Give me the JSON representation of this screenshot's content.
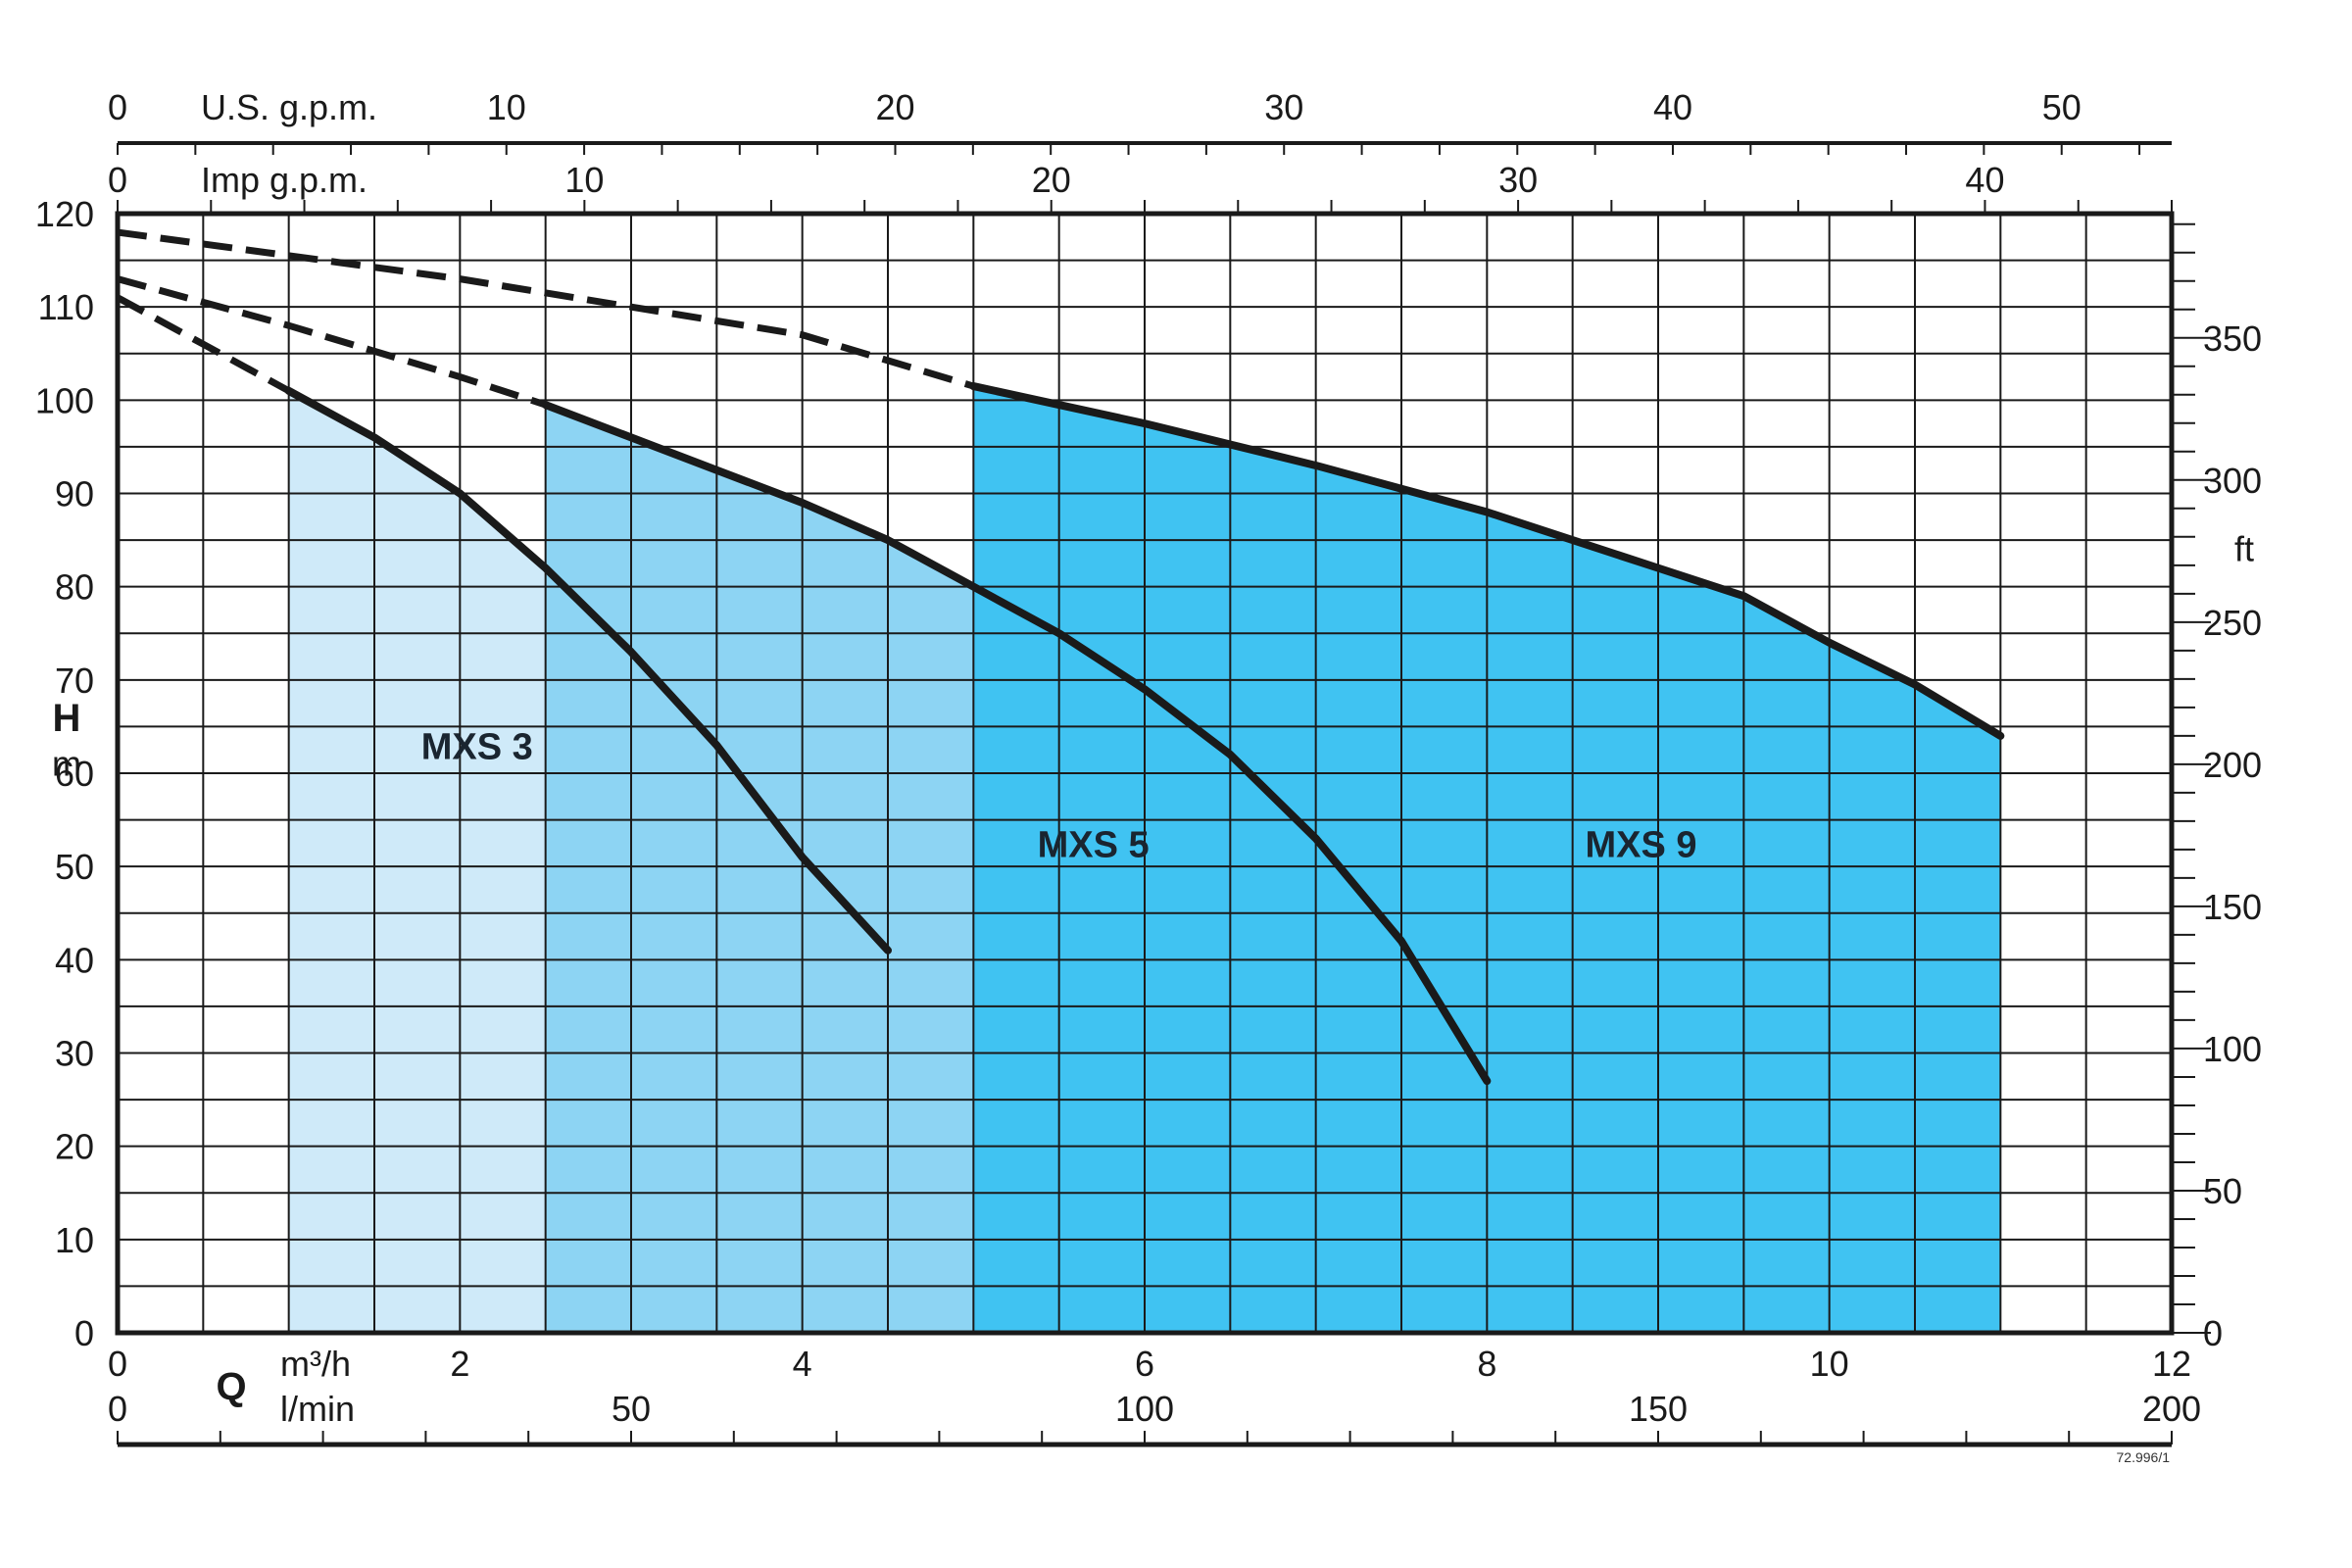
{
  "chart_data": {
    "type": "area",
    "colors": {
      "grid": "#1a1a1a",
      "curve": "#1a1a1a",
      "axis": "#1a1a1a"
    },
    "grid": true,
    "main_axes": {
      "x": {
        "unit": "m³/h",
        "symbol": "Q",
        "range": [
          0,
          12
        ],
        "ticks": [
          0,
          2,
          4,
          6,
          8,
          10,
          12
        ],
        "minor_step": 0.5
      },
      "y": {
        "unit": "m",
        "symbol": "H",
        "range": [
          0,
          120
        ],
        "ticks": [
          0,
          10,
          20,
          30,
          40,
          50,
          60,
          70,
          80,
          90,
          100,
          110,
          120
        ],
        "minor_step": 5
      }
    },
    "secondary_axes": {
      "bottom_lmin": {
        "unit": "l/min",
        "range": [
          0,
          200
        ],
        "ticks": [
          0,
          50,
          100,
          150,
          200
        ],
        "minor_step": 10
      },
      "top_usgpm": {
        "unit": "U.S. g.p.m.",
        "range": [
          0,
          52.83
        ],
        "ticks": [
          0,
          10,
          20,
          30,
          40,
          50
        ],
        "minor_step": 2
      },
      "top_impgpm": {
        "unit": "Imp g.p.m.",
        "range": [
          0,
          44
        ],
        "ticks": [
          0,
          10,
          20,
          30,
          40
        ],
        "minor_step": 2
      },
      "right_ft": {
        "unit": "ft",
        "range": [
          0,
          393.7
        ],
        "ticks": [
          0,
          50,
          100,
          150,
          200,
          250,
          300,
          350
        ],
        "minor_step": 10
      }
    },
    "series": [
      {
        "name": "MXS 3",
        "fill": "#cfeaf9",
        "q_min": 1.0,
        "q_max": 4.5,
        "points": [
          [
            1.0,
            101
          ],
          [
            1.5,
            96
          ],
          [
            2.0,
            90
          ],
          [
            2.5,
            82
          ],
          [
            3.0,
            73
          ],
          [
            3.5,
            63
          ],
          [
            4.0,
            51
          ],
          [
            4.5,
            41
          ]
        ],
        "dashed": [
          [
            0,
            111
          ],
          [
            0.5,
            106
          ],
          [
            1.0,
            101
          ]
        ]
      },
      {
        "name": "MXS 5",
        "fill": "#8dd4f3",
        "q_min": 2.5,
        "q_max": 8.0,
        "points": [
          [
            2.5,
            99.5
          ],
          [
            3.0,
            96
          ],
          [
            3.5,
            92.5
          ],
          [
            4.0,
            89
          ],
          [
            4.5,
            85
          ],
          [
            5.0,
            80
          ],
          [
            5.5,
            75
          ],
          [
            6.0,
            69
          ],
          [
            6.5,
            62
          ],
          [
            7.0,
            53
          ],
          [
            7.5,
            42
          ],
          [
            8.0,
            27
          ]
        ],
        "dashed": [
          [
            0,
            113
          ],
          [
            1.0,
            108
          ],
          [
            2.0,
            102.5
          ],
          [
            2.5,
            99.5
          ]
        ]
      },
      {
        "name": "MXS 9",
        "fill": "#40c3f2",
        "q_min": 5.0,
        "q_max": 11.0,
        "points": [
          [
            5.0,
            101.5
          ],
          [
            6.0,
            97.5
          ],
          [
            7.0,
            93
          ],
          [
            8.0,
            88
          ],
          [
            9.0,
            82
          ],
          [
            9.5,
            79
          ],
          [
            10.0,
            74
          ],
          [
            10.5,
            69.5
          ],
          [
            11.0,
            64
          ]
        ],
        "dashed": [
          [
            0,
            118
          ],
          [
            2.0,
            113
          ],
          [
            4.0,
            107
          ],
          [
            5.0,
            101.5
          ]
        ]
      }
    ],
    "series_label_positions": [
      {
        "name": "MXS 3",
        "q": 2.1,
        "h": 63
      },
      {
        "name": "MXS 5",
        "q": 5.7,
        "h": 52.5
      },
      {
        "name": "MXS 9",
        "q": 8.9,
        "h": 52.5
      }
    ],
    "figure_code": "72.996/1"
  }
}
